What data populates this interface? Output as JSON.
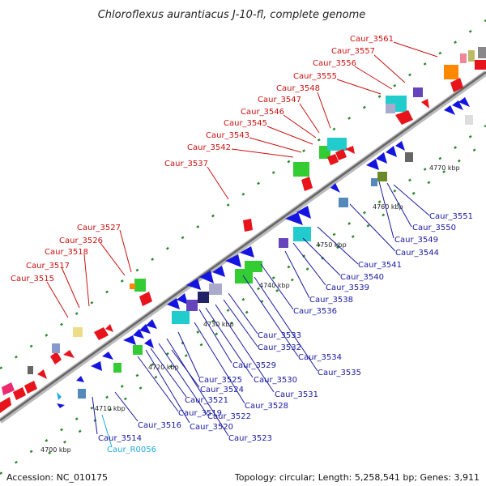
{
  "title": "Chloroflexus aurantiacus J-10-fl, complete genome",
  "footer": {
    "accession": "Accession: NC_010175",
    "summary": "Topology: circular; Length: 5,258,541 bp; Genes: 3,911"
  },
  "ticks": [
    "4700 kbp",
    "4710 kbp",
    "4720 kbp",
    "4730 kbp",
    "4740 kbp",
    "4750 kbp",
    "4760 kbp",
    "4770 kbp"
  ],
  "labels_forward": [
    "Caur_3515",
    "Caur_3517",
    "Caur_3518",
    "Caur_3526",
    "Caur_3527",
    "Caur_3537",
    "Caur_3542",
    "Caur_3543",
    "Caur_3545",
    "Caur_3546",
    "Caur_3547",
    "Caur_3548",
    "Caur_3555",
    "Caur_3556",
    "Caur_3557",
    "Caur_3561"
  ],
  "labels_reverse": [
    "Caur_3514",
    "Caur_3516",
    "Caur_3519",
    "Caur_3520",
    "Caur_3521",
    "Caur_3522",
    "Caur_3523",
    "Caur_3524",
    "Caur_3525",
    "Caur_3528",
    "Caur_3529",
    "Caur_3530",
    "Caur_3531",
    "Caur_3532",
    "Caur_3533",
    "Caur_3534",
    "Caur_3535",
    "Caur_3536",
    "Caur_3538",
    "Caur_3539",
    "Caur_3540",
    "Caur_3541",
    "Caur_3544",
    "Caur_3549",
    "Caur_3550",
    "Caur_3551"
  ],
  "labels_rna": [
    "Caur_R0056"
  ],
  "colors": {
    "forward": "#e8141c",
    "reverse": "#1414e0",
    "rna": "#22aadd",
    "backbone": "#888888"
  }
}
